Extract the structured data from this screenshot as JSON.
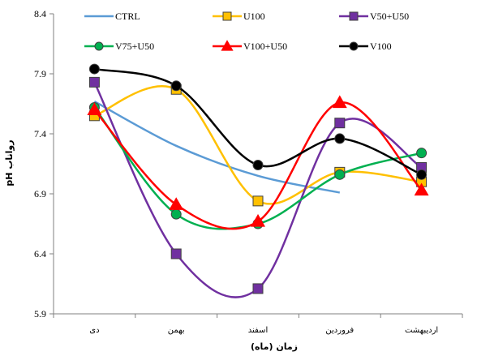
{
  "chart_data": {
    "type": "line",
    "title": "",
    "xlabel": "زمان (ماه)",
    "ylabel": "pH رواناب",
    "categories": [
      "دی",
      "بهمن",
      "اسفند",
      "فروردین",
      "اردیبهشت"
    ],
    "ylim": [
      5.9,
      8.4
    ],
    "yticks": [
      "5.9",
      "6.4",
      "6.9",
      "7.4",
      "7.9",
      "8.4"
    ],
    "grid": false,
    "legend_position": "top",
    "smooth": true,
    "series": [
      {
        "name": "CTRL",
        "color": "#5B9BD5",
        "marker": "none",
        "values": [
          7.67,
          7.3,
          7.05,
          6.91,
          null
        ]
      },
      {
        "name": "U100",
        "color": "#FFC000",
        "marker": "square",
        "values": [
          7.55,
          7.77,
          6.84,
          7.08,
          7.0
        ]
      },
      {
        "name": "V50+U50",
        "color": "#7030A0",
        "marker": "square",
        "values": [
          7.83,
          6.4,
          6.11,
          7.49,
          7.12
        ]
      },
      {
        "name": "V75+U50",
        "color": "#00B050",
        "marker": "circle",
        "values": [
          7.62,
          6.73,
          6.65,
          7.06,
          7.24
        ]
      },
      {
        "name": "V100+U50",
        "color": "#FF0000",
        "marker": "triangle",
        "values": [
          7.6,
          6.81,
          6.67,
          7.66,
          6.93
        ]
      },
      {
        "name": "V100",
        "color": "#000000",
        "marker": "circle",
        "values": [
          7.94,
          7.8,
          7.14,
          7.36,
          7.06
        ]
      }
    ]
  }
}
